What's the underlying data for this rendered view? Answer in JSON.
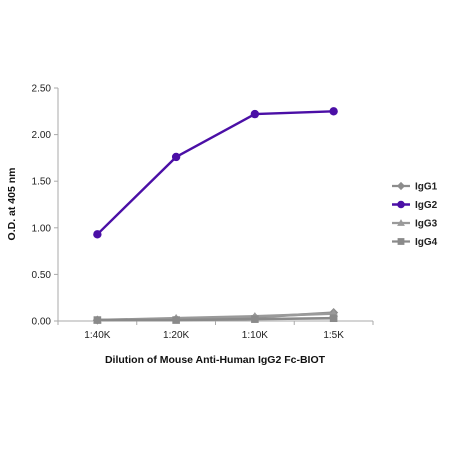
{
  "chart_data": {
    "type": "line",
    "title": "",
    "xlabel": "Dilution of Mouse Anti-Human IgG2 Fc-BIOT",
    "ylabel": "O.D. at 405 nm",
    "categories": [
      "1:40K",
      "1:20K",
      "1:10K",
      "1:5K"
    ],
    "ylim": [
      0,
      2.5
    ],
    "yticks": [
      "0.00",
      "0.50",
      "1.00",
      "1.50",
      "2.00",
      "2.50"
    ],
    "grid": false,
    "legend_position": "right",
    "series": [
      {
        "name": "IgG1",
        "values": [
          0.01,
          0.02,
          0.04,
          0.09
        ],
        "color": "#8c8c8c",
        "marker": "diamond"
      },
      {
        "name": "IgG2",
        "values": [
          0.93,
          1.76,
          2.22,
          2.25
        ],
        "color": "#4b0fa6",
        "marker": "circle"
      },
      {
        "name": "IgG3",
        "values": [
          0.01,
          0.03,
          0.05,
          0.08
        ],
        "color": "#9a9a9a",
        "marker": "triangle"
      },
      {
        "name": "IgG4",
        "values": [
          0.01,
          0.01,
          0.02,
          0.03
        ],
        "color": "#8a8a8a",
        "marker": "square"
      }
    ]
  }
}
